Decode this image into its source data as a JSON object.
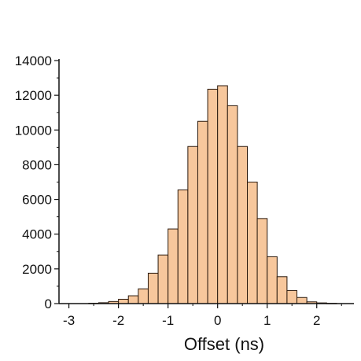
{
  "chart_data": {
    "type": "bar",
    "title": "",
    "xlabel": "Offset (ns)",
    "ylabel": "",
    "xlim": [
      -3.2,
      2.75
    ],
    "ylim": [
      0,
      14000
    ],
    "x_ticks": [
      "-3",
      "-2",
      "-1",
      "0",
      "1",
      "2"
    ],
    "y_ticks": [
      "0",
      "2000",
      "4000",
      "6000",
      "8000",
      "10000",
      "12000",
      "14000"
    ],
    "bin_width": 0.2,
    "bin_centers": [
      -2.5,
      -2.3,
      -2.1,
      -1.9,
      -1.7,
      -1.5,
      -1.3,
      -1.1,
      -0.9,
      -0.7,
      -0.5,
      -0.3,
      -0.1,
      0.1,
      0.3,
      0.5,
      0.7,
      0.9,
      1.1,
      1.3,
      1.5,
      1.7,
      1.9,
      2.1,
      2.3
    ],
    "values": [
      20,
      50,
      120,
      250,
      450,
      850,
      1750,
      2800,
      4300,
      6550,
      9050,
      10500,
      12350,
      12550,
      11400,
      9050,
      7000,
      4900,
      2700,
      1550,
      750,
      350,
      100,
      40,
      15
    ],
    "colors": {
      "bar_fill": "#F7C79C",
      "bar_stroke": "#2b1a0e",
      "axis": "#111111"
    },
    "grid": false,
    "legend": "none"
  }
}
